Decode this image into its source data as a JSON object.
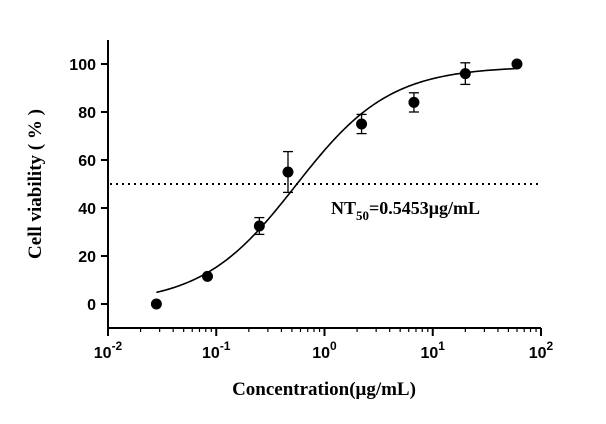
{
  "chart_data": {
    "type": "scatter",
    "title": "",
    "xlabel": "Concentration(μg/mL)",
    "ylabel": "Cell viability ( % )",
    "x_scale": "log",
    "xlim": [
      0.01,
      100
    ],
    "ylim": [
      -10,
      110
    ],
    "x_ticks": [
      {
        "value": 0.01,
        "base": "10",
        "exp": "-2"
      },
      {
        "value": 0.1,
        "base": "10",
        "exp": "-1"
      },
      {
        "value": 1,
        "base": "10",
        "exp": "0"
      },
      {
        "value": 10,
        "base": "10",
        "exp": "1"
      },
      {
        "value": 100,
        "base": "10",
        "exp": "2"
      }
    ],
    "y_ticks": [
      0,
      20,
      40,
      60,
      80,
      100
    ],
    "grid": false,
    "points": [
      {
        "x": 0.028,
        "y": 0.0,
        "err": 0
      },
      {
        "x": 0.083,
        "y": 11.5,
        "err": 0
      },
      {
        "x": 0.25,
        "y": 32.5,
        "err": 3.5
      },
      {
        "x": 0.46,
        "y": 55.0,
        "err": 8.5
      },
      {
        "x": 2.2,
        "y": 75.0,
        "err": 4.0
      },
      {
        "x": 6.7,
        "y": 84.0,
        "err": 4.0
      },
      {
        "x": 20.0,
        "y": 96.0,
        "err": 4.5
      },
      {
        "x": 60.0,
        "y": 100.0,
        "err": 0
      }
    ],
    "fit_curve": {
      "bottom": 0,
      "top": 99,
      "ec50": 0.5453,
      "hill": 1.0,
      "x_range": [
        0.028,
        60
      ]
    },
    "reference_line": {
      "y": 50,
      "style": "dotted"
    },
    "annotation": {
      "prefix": "NT",
      "subscript": "50",
      "suffix": "=0.5453μg/mL"
    }
  }
}
